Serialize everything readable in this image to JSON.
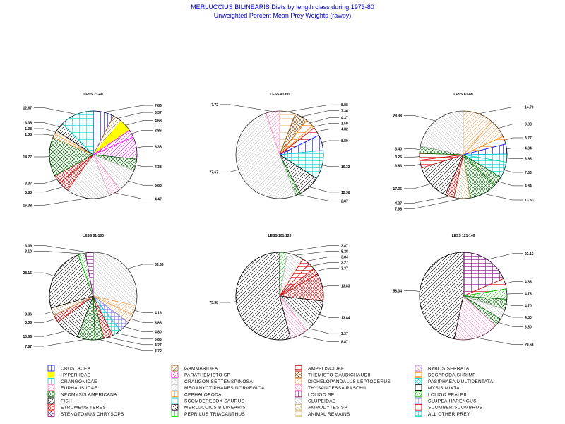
{
  "title": "MERLUCCIUS BILINEARIS Diets by length class during 1973-80",
  "subtitle": "Unweighted Percent Mean Prey Weights (rawpy)",
  "legend": [
    {
      "name": "CRUSTACEA",
      "color": "#0000ff",
      "pattern": "vlines"
    },
    {
      "name": "GAMMARIDEA",
      "color": "#a06020",
      "pattern": "diagup"
    },
    {
      "name": "AMPELISCIDAE",
      "color": "#cc0000",
      "pattern": "hlines"
    },
    {
      "name": "BYBLIS SERRATA",
      "color": "#c080d0",
      "pattern": "diagdown"
    },
    {
      "name": "HYPERIIDAE",
      "color": "#ffff00",
      "pattern": "solid"
    },
    {
      "name": "PARATHEMISTO SP",
      "color": "#ff00ff",
      "pattern": "diagup"
    },
    {
      "name": "THEMISTO GAUDICHAUDII",
      "color": "#804000",
      "pattern": "crossdiag"
    },
    {
      "name": "DECAPODA SHRIMP",
      "color": "#ff8000",
      "pattern": "hlines"
    },
    {
      "name": "CRANGONIDAE",
      "color": "#00cccc",
      "pattern": "vlines"
    },
    {
      "name": "CRANGON SEPTEMSPINOSA",
      "color": "#c0c0c0",
      "pattern": "diagdown"
    },
    {
      "name": "DICHELOPANDALUS LEPTOCERUS",
      "color": "#f0a050",
      "pattern": "diagup"
    },
    {
      "name": "PASIPHAEA MULTIDENTATA",
      "color": "#00cccc",
      "pattern": "crossdiag"
    },
    {
      "name": "EUPHAUSIIDAE",
      "color": "#ff80c0",
      "pattern": "diagup"
    },
    {
      "name": "MEGANYCTIPHANES NORVEGICA",
      "color": "#c0c0c0",
      "pattern": "diagup"
    },
    {
      "name": "THYSANOESSA RASCHII",
      "color": "#ff80c0",
      "pattern": "diagdown"
    },
    {
      "name": "MYSIS MIXTA",
      "color": "#000000",
      "pattern": "hlines"
    },
    {
      "name": "NEOMYSIS AMERICANA",
      "color": "#006600",
      "pattern": "crossdiag"
    },
    {
      "name": "CEPHALOPODA",
      "color": "#ff8000",
      "pattern": "vlines"
    },
    {
      "name": "LOLIGO SP",
      "color": "#800080",
      "pattern": "grid"
    },
    {
      "name": "LOLIGO PEALEII",
      "color": "#00cc00",
      "pattern": "diagup"
    },
    {
      "name": "FISH",
      "color": "#000000",
      "pattern": "diagup"
    },
    {
      "name": "SCOMBERESOX SAURUS",
      "color": "#00cccc",
      "pattern": "hlines"
    },
    {
      "name": "CLUPEIDAE",
      "color": "#c0c0c0",
      "pattern": "diagdown"
    },
    {
      "name": "CLUPEA HARENGUS",
      "color": "#8080ff",
      "pattern": "grid"
    },
    {
      "name": "ETRUMEUS TERES",
      "color": "#cc0000",
      "pattern": "crossdiag"
    },
    {
      "name": "MERLUCCIUS BILINEARIS",
      "color": "#000000",
      "pattern": "diagdown"
    },
    {
      "name": "AMMODYTES SP",
      "color": "#c0a060",
      "pattern": "diagdown"
    },
    {
      "name": "SCOMBER SCOMBRUS",
      "color": "#cc0000",
      "pattern": "hlines"
    },
    {
      "name": "STENOTOMUS CHRYSOPS",
      "color": "#800080",
      "pattern": "crossdiag"
    },
    {
      "name": "PEPRILUS TRIACANTHUS",
      "color": "#00cc00",
      "pattern": "vlines"
    },
    {
      "name": "ANIMAL REMAINS",
      "color": "#e0c080",
      "pattern": "hlines"
    },
    {
      "name": "ALL OTHER PREY",
      "color": "#00cccc",
      "pattern": "grid"
    }
  ],
  "chart_data": [
    {
      "type": "pie",
      "title": "LESS 21-40",
      "slices": [
        {
          "category": "CRUSTACEA",
          "value": 7.86
        },
        {
          "category": "GAMMARIDEA",
          "value": 3.37
        },
        {
          "category": "HYPERIIDAE",
          "value": 4.68
        },
        {
          "category": "PARATHEMISTO SP",
          "value": 2.86
        },
        {
          "category": "PARATHEMISTO SP",
          "value": 8.38
        },
        {
          "category": "NEOMYSIS AMERICANA",
          "value": 4.38
        },
        {
          "category": "CRANGON SEPTEMSPINOSA",
          "value": 8.88
        },
        {
          "category": "EUPHAUSIIDAE",
          "value": 4.47
        },
        {
          "category": "CLUPEIDAE",
          "value": 16.38
        },
        {
          "category": "ETRUMEUS TERES",
          "value": 3.83
        },
        {
          "category": "ETRUMEUS TERES",
          "value": 3.37
        },
        {
          "category": "NEOMYSIS AMERICANA",
          "value": 14.77
        },
        {
          "category": "DICHELOPANDALUS LEPTOCERUS",
          "value": 1.38
        },
        {
          "category": "DICHELOPANDALUS LEPTOCERUS",
          "value": 1.38
        },
        {
          "category": "FISH",
          "value": 3.38
        },
        {
          "category": "ALL OTHER PREY",
          "value": 12.67
        }
      ]
    },
    {
      "type": "pie",
      "title": "LESS 41-60",
      "slices": [
        {
          "category": "ANIMAL REMAINS",
          "value": 8.88
        },
        {
          "category": "THEMISTO GAUDICHAUDII",
          "value": 7.36
        },
        {
          "category": "DECAPODA SHRIMP",
          "value": 4.37
        },
        {
          "category": "CEPHALOPODA",
          "value": 1.5
        },
        {
          "category": "AMPELISCIDAE",
          "value": 4.82
        },
        {
          "category": "CRUSTACEA",
          "value": 8.8
        },
        {
          "category": "ALL OTHER PREY",
          "value": 16.33
        },
        {
          "category": "FISH",
          "value": 12.38
        },
        {
          "category": "NEOMYSIS AMERICANA",
          "value": 2.87
        },
        {
          "category": "MEGANYCTIPHANES NORVEGICA",
          "value": 77.67
        },
        {
          "category": "EUPHAUSIIDAE",
          "value": 7.72
        }
      ]
    },
    {
      "type": "pie",
      "title": "LESS 61-80",
      "slices": [
        {
          "category": "DICHELOPANDALUS LEPTOCERUS",
          "value": 14.7
        },
        {
          "category": "DICHELOPANDALUS LEPTOCERUS",
          "value": 8.88
        },
        {
          "category": "DECAPODA SHRIMP",
          "value": 3.77
        },
        {
          "category": "CRUSTACEA",
          "value": 4.84
        },
        {
          "category": "CRANGONIDAE",
          "value": 3.83
        },
        {
          "category": "ALL OTHER PREY",
          "value": 7.63
        },
        {
          "category": "NEOMYSIS AMERICANA",
          "value": 4.84
        },
        {
          "category": "NEOMYSIS AMERICANA",
          "value": 13.33
        },
        {
          "category": "AMMODYTES SP",
          "value": 7.68
        },
        {
          "category": "ETRUMEUS TERES",
          "value": 4.27
        },
        {
          "category": "FISH",
          "value": 17.36
        },
        {
          "category": "AMPELISCIDAE",
          "value": 3.83
        },
        {
          "category": "SCOMBER SCOMBRUS",
          "value": 3.26
        },
        {
          "category": "NEOMYSIS AMERICANA",
          "value": 3.4
        },
        {
          "category": "CLUPEIDAE",
          "value": 28.38
        }
      ]
    },
    {
      "type": "pie",
      "title": "LESS 81-100",
      "slices": [
        {
          "category": "CLUPEIDAE",
          "value": 33.66
        },
        {
          "category": "DICHELOPANDALUS LEPTOCERUS",
          "value": 4.13
        },
        {
          "category": "DICHELOPANDALUS LEPTOCERUS",
          "value": 3.88
        },
        {
          "category": "CLUPEA HARENGUS",
          "value": 4.8
        },
        {
          "category": "ALL OTHER PREY",
          "value": 3.83
        },
        {
          "category": "ETRUMEUS TERES",
          "value": 4.27
        },
        {
          "category": "NEOMYSIS AMERICANA",
          "value": 3.7
        },
        {
          "category": "NEOMYSIS AMERICANA",
          "value": 7.67
        },
        {
          "category": "MERLUCCIUS BILINEARIS",
          "value": 10.66
        },
        {
          "category": "ETRUMEUS TERES",
          "value": 3.36
        },
        {
          "category": "AMMODYTES SP",
          "value": 3.36
        },
        {
          "category": "FISH",
          "value": 28.16
        },
        {
          "category": "LOLIGO PEALEII",
          "value": 3.1
        },
        {
          "category": "LOLIGO SP",
          "value": 3.39
        }
      ]
    },
    {
      "type": "pie",
      "title": "LESS 101-120",
      "slices": [
        {
          "category": "LOLIGO PEALEII",
          "value": 3.87
        },
        {
          "category": "CLUPEIDAE",
          "value": 8.28
        },
        {
          "category": "AMPELISCIDAE",
          "value": 3.84
        },
        {
          "category": "SCOMBER SCOMBRUS",
          "value": 3.27
        },
        {
          "category": "ETRUMEUS TERES",
          "value": 3.37
        },
        {
          "category": "ETRUMEUS TERES",
          "value": 13.83
        },
        {
          "category": "MERLUCCIUS BILINEARIS",
          "value": 13.84
        },
        {
          "category": "CLUPEIDAE",
          "value": 3.37
        },
        {
          "category": "THYSANOESSA RASCHII",
          "value": 8.87
        },
        {
          "category": "FISH",
          "value": 73.38
        }
      ]
    },
    {
      "type": "pie",
      "title": "LESS 121-140",
      "slices": [
        {
          "category": "LOLIGO SP",
          "value": 23.13
        },
        {
          "category": "AMPELISCIDAE",
          "value": 4.83
        },
        {
          "category": "LOLIGO PEALEII",
          "value": 4.73
        },
        {
          "category": "NEOMYSIS AMERICANA",
          "value": 4.7
        },
        {
          "category": "CLUPEIDAE",
          "value": 4.8
        },
        {
          "category": "NEOMYSIS AMERICANA",
          "value": 3.8
        },
        {
          "category": "THYSANOESSA RASCHII",
          "value": 20.66
        },
        {
          "category": "FISH",
          "value": 58.34
        }
      ]
    }
  ]
}
